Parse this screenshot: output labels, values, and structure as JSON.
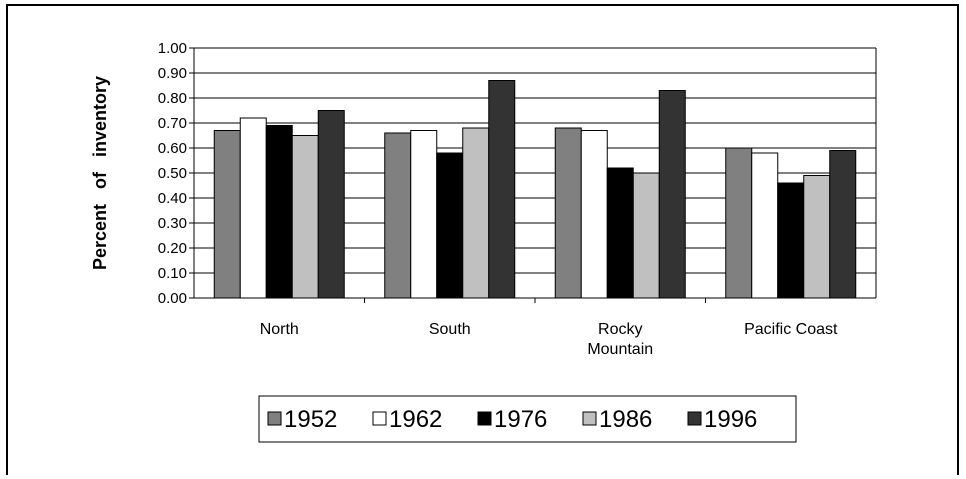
{
  "chart_data": {
    "type": "bar",
    "title": "",
    "xlabel": "",
    "ylabel": "Percent of inventory",
    "ylim": [
      0,
      1
    ],
    "yticks": [
      "0.00",
      "0.10",
      "0.20",
      "0.30",
      "0.40",
      "0.50",
      "0.60",
      "0.70",
      "0.80",
      "0.90",
      "1.00"
    ],
    "grid": true,
    "legend_position": "bottom",
    "categories": [
      [
        "North"
      ],
      [
        "South"
      ],
      [
        "Rocky",
        "Mountain"
      ],
      [
        "Pacific Coast"
      ]
    ],
    "series": [
      {
        "name": "1952",
        "color": "#808080",
        "values": [
          0.67,
          0.66,
          0.68,
          0.6
        ]
      },
      {
        "name": "1962",
        "color": "#ffffff",
        "values": [
          0.72,
          0.67,
          0.67,
          0.58
        ]
      },
      {
        "name": "1976",
        "color": "#000000",
        "values": [
          0.69,
          0.58,
          0.52,
          0.46
        ]
      },
      {
        "name": "1986",
        "color": "#c0c0c0",
        "values": [
          0.65,
          0.68,
          0.5,
          0.49
        ]
      },
      {
        "name": "1996",
        "color": "#333333",
        "values": [
          0.75,
          0.87,
          0.83,
          0.59
        ]
      }
    ]
  }
}
